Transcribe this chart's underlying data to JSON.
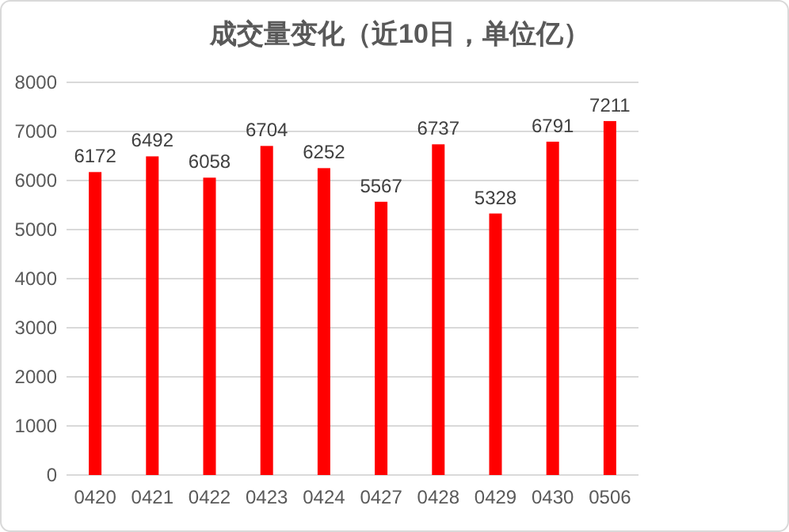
{
  "chart_data": {
    "type": "bar",
    "title": "成交量变化（近10日，单位亿）",
    "categories": [
      "0420",
      "0421",
      "0422",
      "0423",
      "0424",
      "0427",
      "0428",
      "0429",
      "0430",
      "0506"
    ],
    "values": [
      6172,
      6492,
      6058,
      6704,
      6252,
      5567,
      6737,
      5328,
      6791,
      7211
    ],
    "color": "#ff0000",
    "ylim": [
      0,
      8000
    ],
    "yticks": [
      0,
      1000,
      2000,
      3000,
      4000,
      5000,
      6000,
      7000,
      8000
    ],
    "grid": "y",
    "data_labels": true
  }
}
